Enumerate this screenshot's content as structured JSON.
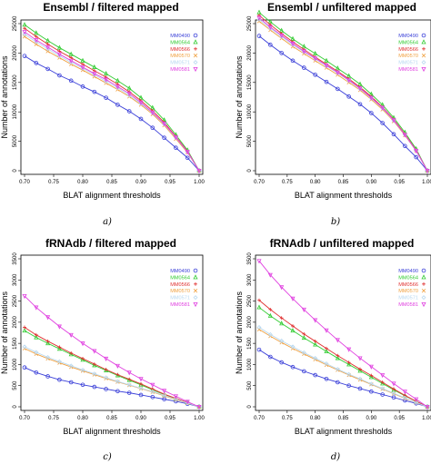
{
  "figure": {
    "captions": [
      "a)",
      "b)",
      "c)",
      "d)"
    ]
  },
  "chart_data": [
    {
      "type": "line",
      "title": "Ensembl / filtered mapped",
      "xlabel": "BLAT alignment thresholds",
      "ylabel": "Number of annotations",
      "x": [
        0.7,
        0.72,
        0.74,
        0.76,
        0.78,
        0.8,
        0.82,
        0.84,
        0.86,
        0.88,
        0.9,
        0.92,
        0.94,
        0.96,
        0.98,
        1.0
      ],
      "xticks": [
        "0.70",
        "0.75",
        "0.80",
        "0.85",
        "0.90",
        "0.95",
        "1.00"
      ],
      "xlim": [
        0.7,
        1.0
      ],
      "ylim": [
        0,
        25000
      ],
      "yticks": [
        "0",
        "5000",
        "10000",
        "15000",
        "20000",
        "25000"
      ],
      "legend_position": "top-right",
      "series": [
        {
          "name": "MM0490",
          "marker": "o",
          "color": "#3a3fd8",
          "values": [
            19500,
            18300,
            17300,
            16200,
            15300,
            14300,
            13400,
            12400,
            11200,
            10100,
            8800,
            7300,
            5600,
            3900,
            2200,
            0
          ]
        },
        {
          "name": "MM0564",
          "marker": "△",
          "color": "#33cc33",
          "values": [
            24800,
            23400,
            22100,
            20900,
            19800,
            18700,
            17600,
            16500,
            15300,
            14000,
            12400,
            10700,
            8600,
            6100,
            3500,
            0
          ]
        },
        {
          "name": "MM0566",
          "marker": "+",
          "color": "#e03030",
          "values": [
            24200,
            22800,
            21500,
            20300,
            19200,
            18100,
            17000,
            15900,
            14700,
            13400,
            11900,
            10200,
            8200,
            5800,
            3300,
            0
          ]
        },
        {
          "name": "MM0570",
          "marker": "×",
          "color": "#f0a040",
          "values": [
            22800,
            21500,
            20300,
            19200,
            18100,
            17100,
            16000,
            14900,
            13800,
            12600,
            11200,
            9600,
            7700,
            5400,
            3100,
            0
          ]
        },
        {
          "name": "MM0571",
          "marker": "◇",
          "color": "#b8d8f0",
          "values": [
            23200,
            21900,
            20700,
            19500,
            18400,
            17400,
            16300,
            15200,
            14100,
            12800,
            11400,
            9800,
            7900,
            5600,
            3200,
            0
          ]
        },
        {
          "name": "MM0581",
          "marker": "▽",
          "color": "#e040e0",
          "values": [
            23600,
            22200,
            21000,
            19800,
            18700,
            17600,
            16500,
            15500,
            14300,
            13100,
            11600,
            9900,
            8000,
            5700,
            3200,
            0
          ]
        }
      ]
    },
    {
      "type": "line",
      "title": "Ensembl / unfiltered mapped",
      "xlabel": "BLAT alignment thresholds",
      "ylabel": "Number of annotations",
      "x": [
        0.7,
        0.72,
        0.74,
        0.76,
        0.78,
        0.8,
        0.82,
        0.84,
        0.86,
        0.88,
        0.9,
        0.92,
        0.94,
        0.96,
        0.98,
        1.0
      ],
      "xticks": [
        "0.70",
        "0.75",
        "0.80",
        "0.85",
        "0.90",
        "0.95",
        "1.00"
      ],
      "xlim": [
        0.7,
        1.0
      ],
      "ylim": [
        0,
        25000
      ],
      "yticks": [
        "0",
        "5000",
        "10000",
        "15000",
        "20000",
        "25000"
      ],
      "legend_position": "top-right",
      "series": [
        {
          "name": "MM0490",
          "marker": "o",
          "color": "#3a3fd8",
          "values": [
            22900,
            21400,
            20000,
            18700,
            17500,
            16300,
            15100,
            13900,
            12600,
            11300,
            9800,
            8100,
            6200,
            4200,
            2300,
            0
          ]
        },
        {
          "name": "MM0564",
          "marker": "△",
          "color": "#33cc33",
          "values": [
            26900,
            25300,
            23800,
            22400,
            21100,
            19900,
            18700,
            17400,
            16100,
            14700,
            13000,
            11200,
            9000,
            6500,
            3700,
            0
          ]
        },
        {
          "name": "MM0566",
          "marker": "+",
          "color": "#e03030",
          "values": [
            26400,
            24800,
            23300,
            21900,
            20600,
            19300,
            18100,
            16900,
            15600,
            14200,
            12600,
            10800,
            8700,
            6200,
            3500,
            0
          ]
        },
        {
          "name": "MM0570",
          "marker": "×",
          "color": "#f0a040",
          "values": [
            25400,
            23900,
            22500,
            21100,
            19900,
            18700,
            17500,
            16300,
            15000,
            13700,
            12100,
            10400,
            8400,
            6000,
            3400,
            0
          ]
        },
        {
          "name": "MM0571",
          "marker": "◇",
          "color": "#b8d8f0",
          "values": [
            25700,
            24200,
            22800,
            21400,
            20200,
            19000,
            17800,
            16600,
            15300,
            13900,
            12300,
            10600,
            8500,
            6100,
            3400,
            0
          ]
        },
        {
          "name": "MM0581",
          "marker": "▽",
          "color": "#e040e0",
          "values": [
            26000,
            24400,
            23000,
            21600,
            20300,
            19100,
            17900,
            16700,
            15400,
            14000,
            12400,
            10700,
            8600,
            6100,
            3400,
            0
          ]
        }
      ]
    },
    {
      "type": "line",
      "title": "fRNAdb / filtered mapped",
      "xlabel": "BLAT alignment thresholds",
      "ylabel": "Number of annotations",
      "x": [
        0.7,
        0.72,
        0.74,
        0.76,
        0.78,
        0.8,
        0.82,
        0.84,
        0.86,
        0.88,
        0.9,
        0.92,
        0.94,
        0.96,
        0.98,
        1.0
      ],
      "xticks": [
        "0.70",
        "0.75",
        "0.80",
        "0.85",
        "0.90",
        "0.95",
        "1.00"
      ],
      "xlim": [
        0.7,
        1.0
      ],
      "ylim": [
        0,
        3500
      ],
      "yticks": [
        "0",
        "500",
        "1000",
        "1500",
        "2000",
        "2500",
        "3000",
        "3500"
      ],
      "legend_position": "top-right",
      "series": [
        {
          "name": "MM0490",
          "marker": "o",
          "color": "#3a3fd8",
          "values": [
            930,
            810,
            720,
            640,
            580,
            520,
            470,
            420,
            370,
            330,
            280,
            230,
            180,
            130,
            70,
            0
          ]
        },
        {
          "name": "MM0564",
          "marker": "△",
          "color": "#33cc33",
          "values": [
            1800,
            1640,
            1500,
            1370,
            1240,
            1110,
            980,
            860,
            740,
            630,
            520,
            400,
            290,
            190,
            100,
            0
          ]
        },
        {
          "name": "MM0566",
          "marker": "+",
          "color": "#e03030",
          "values": [
            1880,
            1700,
            1550,
            1410,
            1270,
            1140,
            1010,
            880,
            760,
            650,
            540,
            420,
            300,
            200,
            100,
            0
          ]
        },
        {
          "name": "MM0570",
          "marker": "×",
          "color": "#f0a040",
          "values": [
            1380,
            1250,
            1140,
            1040,
            940,
            850,
            760,
            670,
            590,
            510,
            430,
            350,
            260,
            170,
            90,
            0
          ]
        },
        {
          "name": "MM0571",
          "marker": "◇",
          "color": "#b8d8f0",
          "values": [
            1420,
            1290,
            1170,
            1070,
            970,
            870,
            780,
            690,
            600,
            520,
            440,
            360,
            270,
            180,
            90,
            0
          ]
        },
        {
          "name": "MM0581",
          "marker": "▽",
          "color": "#e040e0",
          "values": [
            2620,
            2350,
            2120,
            1900,
            1700,
            1500,
            1320,
            1140,
            970,
            810,
            660,
            520,
            380,
            250,
            120,
            0
          ]
        }
      ]
    },
    {
      "type": "line",
      "title": "fRNAdb / unfiltered mapped",
      "xlabel": "BLAT alignment thresholds",
      "ylabel": "Number of annotations",
      "x": [
        0.7,
        0.72,
        0.74,
        0.76,
        0.78,
        0.8,
        0.82,
        0.84,
        0.86,
        0.88,
        0.9,
        0.92,
        0.94,
        0.96,
        0.98,
        1.0
      ],
      "xticks": [
        "0.70",
        "0.75",
        "0.80",
        "0.85",
        "0.90",
        "0.95",
        "1.00"
      ],
      "xlim": [
        0.7,
        1.0
      ],
      "ylim": [
        0,
        3500
      ],
      "yticks": [
        "0",
        "500",
        "1000",
        "1500",
        "2000",
        "2500",
        "3000",
        "3500"
      ],
      "legend_position": "top-right",
      "series": [
        {
          "name": "MM0490",
          "marker": "o",
          "color": "#3a3fd8",
          "values": [
            1350,
            1180,
            1050,
            940,
            840,
            750,
            660,
            580,
            500,
            430,
            360,
            290,
            220,
            150,
            80,
            0
          ]
        },
        {
          "name": "MM0564",
          "marker": "△",
          "color": "#33cc33",
          "values": [
            2350,
            2150,
            1970,
            1800,
            1630,
            1470,
            1310,
            1150,
            1000,
            850,
            700,
            550,
            400,
            260,
            130,
            0
          ]
        },
        {
          "name": "MM0566",
          "marker": "+",
          "color": "#e03030",
          "values": [
            2520,
            2300,
            2100,
            1910,
            1720,
            1550,
            1380,
            1210,
            1050,
            890,
            740,
            580,
            420,
            270,
            130,
            0
          ]
        },
        {
          "name": "MM0570",
          "marker": "×",
          "color": "#f0a040",
          "values": [
            1830,
            1670,
            1520,
            1380,
            1250,
            1120,
            990,
            870,
            750,
            640,
            530,
            420,
            310,
            200,
            100,
            0
          ]
        },
        {
          "name": "MM0571",
          "marker": "◇",
          "color": "#b8d8f0",
          "values": [
            1880,
            1710,
            1560,
            1420,
            1280,
            1150,
            1020,
            890,
            770,
            660,
            540,
            430,
            320,
            210,
            100,
            0
          ]
        },
        {
          "name": "MM0581",
          "marker": "▽",
          "color": "#e040e0",
          "values": [
            3450,
            3120,
            2830,
            2560,
            2300,
            2050,
            1810,
            1580,
            1360,
            1150,
            950,
            750,
            550,
            360,
            180,
            0
          ]
        }
      ]
    }
  ]
}
